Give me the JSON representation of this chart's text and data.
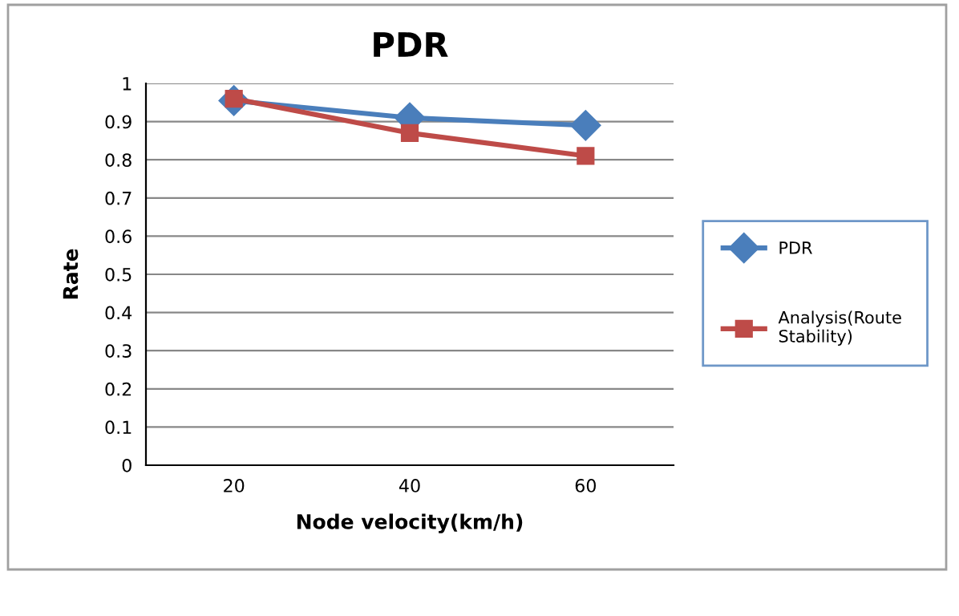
{
  "chart_data": {
    "type": "line",
    "title": "PDR",
    "xlabel": "Node velocity(km/h)",
    "ylabel": "Rate",
    "categories": [
      "20",
      "40",
      "60"
    ],
    "series": [
      {
        "name": "PDR",
        "color": "#4a7ebb",
        "marker": "diamond",
        "values": [
          0.955,
          0.91,
          0.89
        ]
      },
      {
        "name": "Analysis(Route Stability)",
        "color": "#be4b48",
        "marker": "square",
        "values": [
          0.96,
          0.87,
          0.81
        ]
      }
    ],
    "ylim": [
      0,
      1
    ],
    "yticks": [
      0,
      0.1,
      0.2,
      0.3,
      0.4,
      0.5,
      0.6,
      0.7,
      0.8,
      0.9,
      1
    ],
    "grid": "y",
    "legend": "right",
    "line_style": "solid"
  }
}
